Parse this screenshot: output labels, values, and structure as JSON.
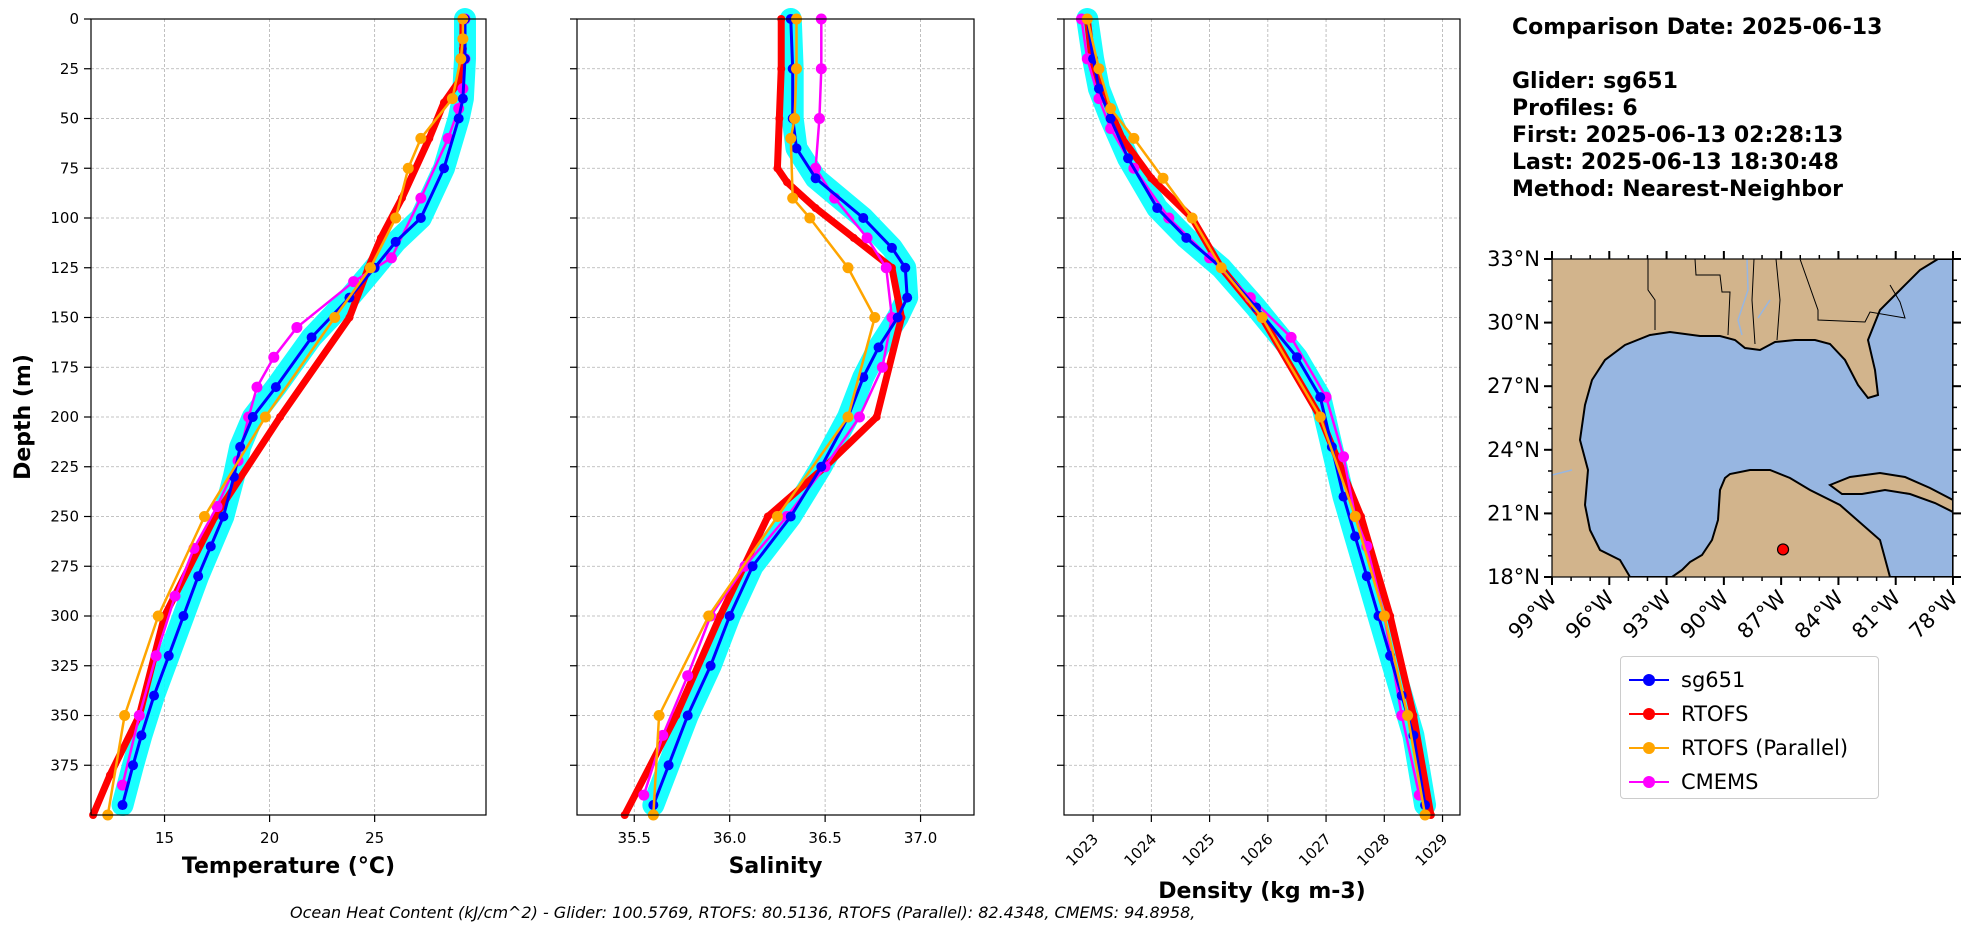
{
  "info": {
    "comparison_date": "Comparison Date: 2025-06-13",
    "glider": "Glider: sg651",
    "profiles": "Profiles: 6",
    "first": "First: 2025-06-13 02:28:13",
    "last": "Last: 2025-06-13 18:30:48",
    "method": "Method: Nearest-Neighbor"
  },
  "footer": "Ocean Heat Content (kJ/cm^2) - Glider: 100.5769,  RTOFS: 80.5136,  RTOFS (Parallel): 82.4348,  CMEMS: 94.8958,",
  "legend": [
    {
      "label": "sg651",
      "color": "#0000ff"
    },
    {
      "label": "RTOFS",
      "color": "#ff0000"
    },
    {
      "label": "RTOFS (Parallel)",
      "color": "#ffa500"
    },
    {
      "label": "CMEMS",
      "color": "#ff00ff"
    }
  ],
  "chart_data": [
    {
      "type": "line",
      "xlabel": "Temperature (°C)",
      "ylabel": "Depth (m)",
      "xlim": [
        11.5,
        30.3
      ],
      "ylim": [
        400,
        0
      ],
      "xticks": [
        15,
        20,
        25
      ],
      "yticks": [
        0,
        25,
        50,
        75,
        100,
        125,
        150,
        175,
        200,
        225,
        250,
        275,
        300,
        325,
        350,
        375
      ],
      "grid": true,
      "glider_spread_color": "#00ffff",
      "series": [
        {
          "name": "sg651",
          "color": "#0000ff",
          "x": [
            29.3,
            29.3,
            29.2,
            29.0,
            28.3,
            27.2,
            26.0,
            25.0,
            23.8,
            22.0,
            20.3,
            19.2,
            18.6,
            18.3,
            17.8,
            17.2,
            16.6,
            15.9,
            15.2,
            14.5,
            13.9,
            13.5,
            13.0
          ],
          "y": [
            0,
            20,
            40,
            50,
            75,
            100,
            112,
            125,
            140,
            160,
            185,
            200,
            215,
            230,
            250,
            265,
            280,
            300,
            320,
            340,
            360,
            375,
            395
          ]
        },
        {
          "name": "RTOFS",
          "color": "#ff0000",
          "x": [
            29.2,
            29.2,
            29.1,
            28.3,
            27.6,
            26.3,
            25.3,
            24.7,
            23.8,
            20.5,
            17.4,
            15.0,
            13.8,
            12.4,
            11.6
          ],
          "y": [
            0,
            15,
            30,
            42,
            60,
            90,
            110,
            125,
            150,
            200,
            250,
            300,
            350,
            380,
            400
          ]
        },
        {
          "name": "RTOFS (Parallel)",
          "color": "#ffa500",
          "x": [
            29.2,
            29.2,
            29.1,
            28.7,
            27.2,
            26.6,
            26.0,
            24.8,
            23.1,
            19.8,
            16.9,
            14.7,
            13.1,
            12.3
          ],
          "y": [
            0,
            10,
            20,
            40,
            60,
            75,
            100,
            125,
            150,
            200,
            250,
            300,
            350,
            400
          ]
        },
        {
          "name": "CMEMS",
          "color": "#ff00ff",
          "x": [
            29.3,
            29.3,
            29.2,
            29.0,
            28.5,
            27.2,
            25.8,
            24.0,
            21.3,
            20.2,
            19.4,
            19.0,
            18.5,
            17.5,
            16.4,
            15.5,
            14.6,
            13.8,
            13.0
          ],
          "y": [
            0,
            20,
            35,
            45,
            60,
            90,
            120,
            132,
            155,
            170,
            185,
            200,
            222,
            245,
            266,
            290,
            320,
            350,
            385
          ]
        }
      ]
    },
    {
      "type": "line",
      "xlabel": "Salinity",
      "xlim": [
        35.2,
        37.28
      ],
      "ylim": [
        400,
        0
      ],
      "xticks": [
        35.5,
        36.0,
        36.5,
        37.0
      ],
      "grid": true,
      "series": [
        {
          "name": "sg651",
          "color": "#0000ff",
          "x": [
            36.32,
            36.33,
            36.33,
            36.35,
            36.45,
            36.7,
            36.85,
            36.92,
            36.93,
            36.88,
            36.78,
            36.7,
            36.62,
            36.48,
            36.32,
            36.12,
            36.0,
            35.9,
            35.78,
            35.68,
            35.6
          ],
          "y": [
            0,
            25,
            50,
            65,
            80,
            100,
            115,
            125,
            140,
            150,
            165,
            180,
            200,
            225,
            250,
            275,
            300,
            325,
            350,
            375,
            395
          ]
        },
        {
          "name": "RTOFS",
          "color": "#ff0000",
          "x": [
            36.27,
            36.27,
            36.26,
            36.25,
            36.3,
            36.45,
            36.65,
            36.85,
            36.9,
            36.77,
            36.5,
            36.2,
            35.95,
            35.72,
            35.45
          ],
          "y": [
            0,
            25,
            50,
            75,
            82,
            95,
            110,
            125,
            150,
            200,
            225,
            250,
            300,
            350,
            400
          ]
        },
        {
          "name": "RTOFS (Parallel)",
          "color": "#ffa500",
          "x": [
            36.35,
            36.35,
            36.34,
            36.32,
            36.33,
            36.42,
            36.62,
            36.76,
            36.62,
            36.25,
            35.89,
            35.63,
            35.6
          ],
          "y": [
            0,
            25,
            50,
            60,
            90,
            100,
            125,
            150,
            200,
            250,
            300,
            350,
            400
          ]
        },
        {
          "name": "CMEMS",
          "color": "#ff00ff",
          "x": [
            36.48,
            36.48,
            36.47,
            36.45,
            36.55,
            36.72,
            36.82,
            36.85,
            36.8,
            36.68,
            36.5,
            36.3,
            36.08,
            35.9,
            35.78,
            35.65,
            35.55
          ],
          "y": [
            0,
            25,
            50,
            75,
            90,
            110,
            125,
            150,
            175,
            200,
            225,
            250,
            275,
            300,
            330,
            360,
            390
          ]
        }
      ]
    },
    {
      "type": "line",
      "xlabel": "Density (kg m-3)",
      "xlim": [
        1022.5,
        1029.3
      ],
      "ylim": [
        400,
        0
      ],
      "xticks": [
        1023,
        1024,
        1025,
        1026,
        1027,
        1028,
        1029
      ],
      "grid": true,
      "series": [
        {
          "name": "sg651",
          "color": "#0000ff",
          "x": [
            1022.9,
            1023.0,
            1023.1,
            1023.3,
            1023.6,
            1024.1,
            1024.6,
            1025.2,
            1025.8,
            1026.5,
            1026.9,
            1027.1,
            1027.3,
            1027.5,
            1027.7,
            1027.9,
            1028.1,
            1028.3,
            1028.5,
            1028.7
          ],
          "y": [
            0,
            20,
            35,
            50,
            70,
            95,
            110,
            125,
            145,
            170,
            190,
            215,
            240,
            260,
            280,
            300,
            320,
            340,
            360,
            395
          ]
        },
        {
          "name": "RTOFS",
          "color": "#ff0000",
          "x": [
            1022.9,
            1023.0,
            1023.2,
            1023.5,
            1024.0,
            1024.7,
            1025.2,
            1025.9,
            1026.9,
            1027.6,
            1028.1,
            1028.5,
            1028.8
          ],
          "y": [
            0,
            25,
            40,
            60,
            80,
            100,
            125,
            150,
            200,
            250,
            300,
            350,
            400
          ]
        },
        {
          "name": "RTOFS (Parallel)",
          "color": "#ffa500",
          "x": [
            1022.9,
            1023.1,
            1023.3,
            1023.7,
            1024.2,
            1024.7,
            1025.2,
            1025.9,
            1026.9,
            1027.5,
            1028.0,
            1028.4,
            1028.7
          ],
          "y": [
            0,
            25,
            45,
            60,
            80,
            100,
            125,
            150,
            200,
            250,
            300,
            350,
            400
          ]
        },
        {
          "name": "CMEMS",
          "color": "#ff00ff",
          "x": [
            1022.8,
            1022.9,
            1023.1,
            1023.3,
            1023.7,
            1024.3,
            1025.0,
            1025.7,
            1026.4,
            1027.0,
            1027.3,
            1027.5,
            1027.7,
            1028.0,
            1028.3,
            1028.6
          ],
          "y": [
            0,
            20,
            40,
            55,
            75,
            100,
            120,
            140,
            160,
            190,
            220,
            250,
            265,
            300,
            350,
            390
          ]
        }
      ]
    },
    {
      "type": "map",
      "lat_ticks": [
        "33°N",
        "30°N",
        "27°N",
        "24°N",
        "21°N",
        "18°N"
      ],
      "lon_ticks": [
        "99°W",
        "96°W",
        "93°W",
        "90°W",
        "87°W",
        "84°W",
        "81°W",
        "78°W"
      ],
      "extent_lon": [
        -99,
        -78
      ],
      "extent_lat": [
        18,
        33
      ],
      "land_color": "#d2b48c",
      "ocean_color": "#97b6e1",
      "marker": {
        "lon": -86.9,
        "lat": 19.3,
        "color": "#ff0000"
      }
    }
  ]
}
